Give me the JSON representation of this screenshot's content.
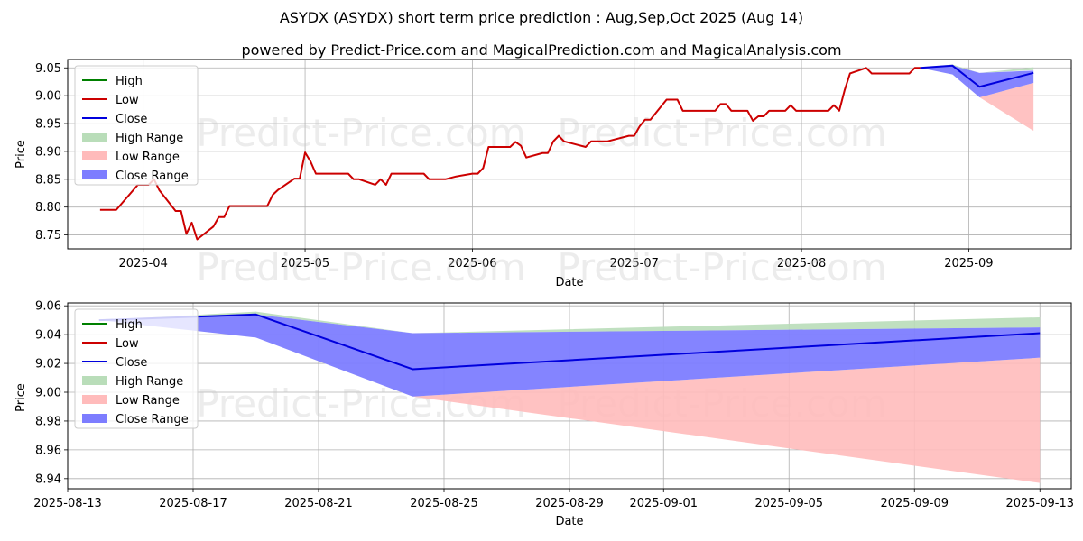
{
  "title": "ASYDX (ASYDX) short term price prediction : Aug,Sep,Oct 2025 (Aug 14)",
  "subtitle": "powered by Predict-Price.com and MagicalPrediction.com and MagicalAnalysis.com",
  "watermark": "Predict-Price.com",
  "colors": {
    "high": "#008000",
    "low": "#cc0000",
    "close": "#0000dd",
    "high_range": "#b9ddb9",
    "low_range": "#ffbbbb",
    "close_range": "#7d7dff"
  },
  "chart_data": [
    {
      "type": "line",
      "xlabel": "Date",
      "ylabel": "Price",
      "ylim": [
        8.725,
        9.065
      ],
      "yticks": [
        "8.75",
        "8.80",
        "8.85",
        "8.90",
        "8.95",
        "9.00",
        "9.05"
      ],
      "xticks": [
        {
          "date": "2025-04-01",
          "label": "2025-04"
        },
        {
          "date": "2025-05-01",
          "label": "2025-05"
        },
        {
          "date": "2025-06-01",
          "label": "2025-06"
        },
        {
          "date": "2025-07-01",
          "label": "2025-07"
        },
        {
          "date": "2025-08-01",
          "label": "2025-08"
        },
        {
          "date": "2025-09-01",
          "label": "2025-09"
        }
      ],
      "xlim": [
        "2025-03-18",
        "2025-09-20"
      ],
      "grid": true,
      "legend": {
        "position": "top-left",
        "entries": [
          "High",
          "Low",
          "Close",
          "High Range",
          "Low Range",
          "Close Range"
        ]
      },
      "series": [
        {
          "name": "Low",
          "points": [
            [
              "2025-03-24",
              8.795
            ],
            [
              "2025-03-27",
              8.795
            ],
            [
              "2025-03-31",
              8.84
            ],
            [
              "2025-04-02",
              8.84
            ],
            [
              "2025-04-03",
              8.85
            ],
            [
              "2025-04-04",
              8.83
            ],
            [
              "2025-04-07",
              8.793
            ],
            [
              "2025-04-08",
              8.793
            ],
            [
              "2025-04-09",
              8.752
            ],
            [
              "2025-04-10",
              8.772
            ],
            [
              "2025-04-11",
              8.742
            ],
            [
              "2025-04-14",
              8.765
            ],
            [
              "2025-04-15",
              8.782
            ],
            [
              "2025-04-16",
              8.782
            ],
            [
              "2025-04-17",
              8.802
            ],
            [
              "2025-04-24",
              8.802
            ],
            [
              "2025-04-25",
              8.822
            ],
            [
              "2025-04-26",
              8.831
            ],
            [
              "2025-04-29",
              8.851
            ],
            [
              "2025-04-30",
              8.851
            ],
            [
              "2025-05-01",
              8.898
            ],
            [
              "2025-05-02",
              8.882
            ],
            [
              "2025-05-03",
              8.86
            ],
            [
              "2025-05-09",
              8.86
            ],
            [
              "2025-05-10",
              8.85
            ],
            [
              "2025-05-11",
              8.85
            ],
            [
              "2025-05-14",
              8.84
            ],
            [
              "2025-05-15",
              8.85
            ],
            [
              "2025-05-16",
              8.84
            ],
            [
              "2025-05-17",
              8.86
            ],
            [
              "2025-05-23",
              8.86
            ],
            [
              "2025-05-24",
              8.85
            ],
            [
              "2025-05-27",
              8.85
            ],
            [
              "2025-05-29",
              8.855
            ],
            [
              "2025-06-01",
              8.86
            ],
            [
              "2025-06-02",
              8.86
            ],
            [
              "2025-06-03",
              8.87
            ],
            [
              "2025-06-04",
              8.908
            ],
            [
              "2025-06-08",
              8.908
            ],
            [
              "2025-06-09",
              8.917
            ],
            [
              "2025-06-10",
              8.91
            ],
            [
              "2025-06-11",
              8.889
            ],
            [
              "2025-06-14",
              8.897
            ],
            [
              "2025-06-15",
              8.897
            ],
            [
              "2025-06-16",
              8.918
            ],
            [
              "2025-06-17",
              8.928
            ],
            [
              "2025-06-18",
              8.918
            ],
            [
              "2025-06-22",
              8.908
            ],
            [
              "2025-06-23",
              8.918
            ],
            [
              "2025-06-26",
              8.918
            ],
            [
              "2025-06-30",
              8.928
            ],
            [
              "2025-07-01",
              8.928
            ],
            [
              "2025-07-02",
              8.945
            ],
            [
              "2025-07-03",
              8.957
            ],
            [
              "2025-07-04",
              8.957
            ],
            [
              "2025-07-07",
              8.993
            ],
            [
              "2025-07-09",
              8.993
            ],
            [
              "2025-07-10",
              8.973
            ],
            [
              "2025-07-15",
              8.973
            ],
            [
              "2025-07-16",
              8.973
            ],
            [
              "2025-07-17",
              8.985
            ],
            [
              "2025-07-18",
              8.985
            ],
            [
              "2025-07-19",
              8.973
            ],
            [
              "2025-07-22",
              8.973
            ],
            [
              "2025-07-23",
              8.955
            ],
            [
              "2025-07-24",
              8.963
            ],
            [
              "2025-07-25",
              8.963
            ],
            [
              "2025-07-26",
              8.973
            ],
            [
              "2025-07-29",
              8.973
            ],
            [
              "2025-07-30",
              8.983
            ],
            [
              "2025-07-31",
              8.973
            ],
            [
              "2025-08-06",
              8.973
            ],
            [
              "2025-08-07",
              8.983
            ],
            [
              "2025-08-08",
              8.973
            ],
            [
              "2025-08-09",
              9.01
            ],
            [
              "2025-08-10",
              9.04
            ],
            [
              "2025-08-13",
              9.05
            ],
            [
              "2025-08-14",
              9.04
            ],
            [
              "2025-08-21",
              9.04
            ],
            [
              "2025-08-22",
              9.05
            ],
            [
              "2025-08-23",
              9.05
            ]
          ]
        },
        {
          "name": "Close",
          "points": [
            [
              "2025-08-23",
              9.05
            ],
            [
              "2025-08-29",
              9.054
            ],
            [
              "2025-09-03",
              9.016
            ],
            [
              "2025-09-13",
              9.041
            ]
          ]
        },
        {
          "name": "High Range",
          "upper": [
            [
              "2025-08-23",
              9.05
            ],
            [
              "2025-08-29",
              9.056
            ],
            [
              "2025-09-03",
              9.041
            ],
            [
              "2025-09-13",
              9.051
            ]
          ],
          "lower": [
            [
              "2025-08-23",
              9.05
            ],
            [
              "2025-08-29",
              9.054
            ],
            [
              "2025-09-03",
              9.041
            ],
            [
              "2025-09-13",
              9.046
            ]
          ]
        },
        {
          "name": "Low Range",
          "upper": [
            [
              "2025-08-23",
              9.05
            ],
            [
              "2025-08-29",
              9.038
            ],
            [
              "2025-09-03",
              8.997
            ],
            [
              "2025-09-13",
              9.023
            ]
          ],
          "lower": [
            [
              "2025-08-23",
              9.05
            ],
            [
              "2025-08-29",
              9.038
            ],
            [
              "2025-09-03",
              8.997
            ],
            [
              "2025-09-13",
              8.937
            ]
          ]
        },
        {
          "name": "Close Range",
          "upper": [
            [
              "2025-08-23",
              9.05
            ],
            [
              "2025-08-29",
              9.054
            ],
            [
              "2025-09-03",
              9.041
            ],
            [
              "2025-09-13",
              9.045
            ]
          ],
          "lower": [
            [
              "2025-08-23",
              9.05
            ],
            [
              "2025-08-29",
              9.038
            ],
            [
              "2025-09-03",
              8.997
            ],
            [
              "2025-09-13",
              9.023
            ]
          ]
        }
      ]
    },
    {
      "type": "line",
      "xlabel": "Date",
      "ylabel": "Price",
      "ylim": [
        8.933,
        9.062
      ],
      "yticks": [
        "8.94",
        "8.96",
        "8.98",
        "9.00",
        "9.02",
        "9.04",
        "9.06"
      ],
      "xticks": [
        {
          "date": "2025-08-13",
          "label": "2025-08-13"
        },
        {
          "date": "2025-08-17",
          "label": "2025-08-17"
        },
        {
          "date": "2025-08-21",
          "label": "2025-08-21"
        },
        {
          "date": "2025-08-25",
          "label": "2025-08-25"
        },
        {
          "date": "2025-08-29",
          "label": "2025-08-29"
        },
        {
          "date": "2025-09-01",
          "label": "2025-09-01"
        },
        {
          "date": "2025-09-05",
          "label": "2025-09-05"
        },
        {
          "date": "2025-09-09",
          "label": "2025-09-09"
        },
        {
          "date": "2025-09-13",
          "label": "2025-09-13"
        }
      ],
      "xlim": [
        "2025-08-13",
        "2025-09-14"
      ],
      "grid": true,
      "legend": {
        "position": "top-left",
        "entries": [
          "High",
          "Low",
          "Close",
          "High Range",
          "Low Range",
          "Close Range"
        ]
      },
      "series": [
        {
          "name": "Close",
          "points": [
            [
              "2025-08-14",
              9.05
            ],
            [
              "2025-08-19",
              9.054
            ],
            [
              "2025-08-24",
              9.016
            ],
            [
              "2025-09-13",
              9.041
            ]
          ]
        },
        {
          "name": "High Range",
          "upper": [
            [
              "2025-08-14",
              9.05
            ],
            [
              "2025-08-19",
              9.056
            ],
            [
              "2025-08-24",
              9.041
            ],
            [
              "2025-09-13",
              9.052
            ]
          ],
          "lower": [
            [
              "2025-08-14",
              9.05
            ],
            [
              "2025-08-19",
              9.054
            ],
            [
              "2025-08-24",
              9.041
            ],
            [
              "2025-09-13",
              9.045
            ]
          ]
        },
        {
          "name": "Low Range",
          "upper": [
            [
              "2025-08-14",
              9.05
            ],
            [
              "2025-08-19",
              9.038
            ],
            [
              "2025-08-24",
              8.997
            ],
            [
              "2025-09-13",
              9.024
            ]
          ],
          "lower": [
            [
              "2025-08-14",
              9.05
            ],
            [
              "2025-08-19",
              9.038
            ],
            [
              "2025-08-24",
              8.997
            ],
            [
              "2025-09-13",
              8.937
            ]
          ]
        },
        {
          "name": "Close Range",
          "upper": [
            [
              "2025-08-14",
              9.05
            ],
            [
              "2025-08-19",
              9.054
            ],
            [
              "2025-08-24",
              9.041
            ],
            [
              "2025-09-13",
              9.045
            ]
          ],
          "lower": [
            [
              "2025-08-14",
              9.05
            ],
            [
              "2025-08-19",
              9.038
            ],
            [
              "2025-08-24",
              8.997
            ],
            [
              "2025-09-13",
              9.024
            ]
          ]
        }
      ]
    }
  ]
}
